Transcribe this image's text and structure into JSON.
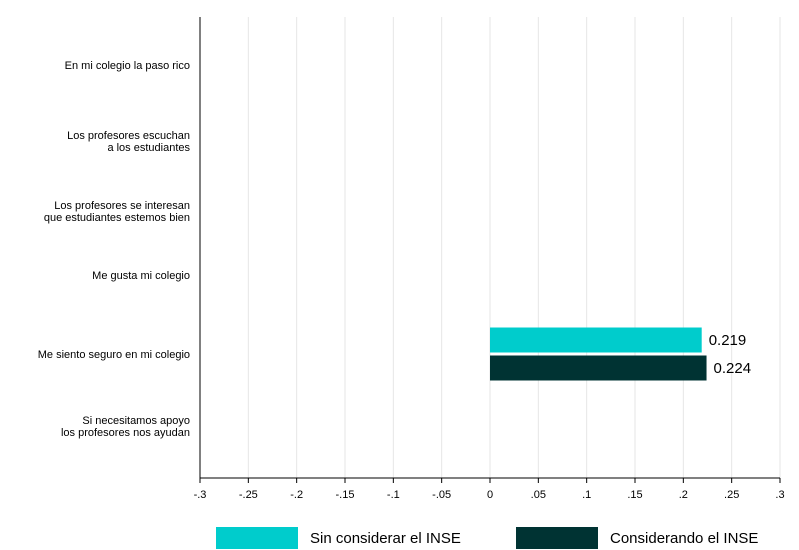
{
  "chart_data": {
    "type": "bar",
    "orientation": "horizontal",
    "categories": [
      [
        "En mi colegio la paso rico"
      ],
      [
        "Los profesores escuchan",
        "a los estudiantes"
      ],
      [
        "Los profesores se interesan",
        "que estudiantes estemos bien"
      ],
      [
        "Me gusta mi colegio"
      ],
      [
        "Me siento seguro en mi colegio"
      ],
      [
        "Si necesitamos apoyo",
        "los profesores nos ayudan"
      ]
    ],
    "series": [
      {
        "name": "Sin considerar el INSE",
        "color": "#00cccc",
        "values": [
          null,
          null,
          null,
          null,
          0.219,
          null
        ],
        "labels": [
          "",
          "",
          "",
          "",
          "0.219",
          ""
        ]
      },
      {
        "name": "Considerando el INSE",
        "color": "#003333",
        "values": [
          null,
          null,
          null,
          null,
          0.224,
          null
        ],
        "labels": [
          "",
          "",
          "",
          "",
          "0.224",
          ""
        ]
      }
    ],
    "xlim": [
      -0.3,
      0.3
    ],
    "xticks": [
      -0.3,
      -0.25,
      -0.2,
      -0.15,
      -0.1,
      -0.05,
      0,
      0.05,
      0.1,
      0.15,
      0.2,
      0.25,
      0.3
    ],
    "xtick_labels": [
      "-.3",
      "-.25",
      "-.2",
      "-.15",
      "-.1",
      "-.05",
      "0",
      ".05",
      ".1",
      ".15",
      ".2",
      ".25",
      ".3"
    ],
    "grid": true,
    "legend_position": "bottom"
  }
}
